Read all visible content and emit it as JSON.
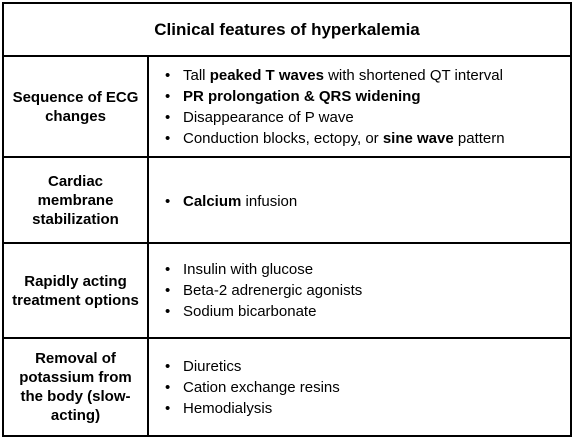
{
  "title": "Clinical features of hyperkalemia",
  "rows": [
    {
      "label": "Sequence of ECG changes",
      "items": [
        {
          "pre": "Tall ",
          "bold": "peaked T waves",
          "post": " with shortened QT interval"
        },
        {
          "pre": "",
          "bold": "PR prolongation & QRS widening",
          "post": ""
        },
        {
          "pre": "Disappearance of P wave",
          "bold": "",
          "post": ""
        },
        {
          "pre": "Conduction blocks, ectopy, or ",
          "bold": "sine wave",
          "post": " pattern"
        }
      ]
    },
    {
      "label": "Cardiac membrane stabilization",
      "items": [
        {
          "pre": "",
          "bold": "Calcium",
          "post": " infusion"
        }
      ]
    },
    {
      "label": "Rapidly acting treatment options",
      "items": [
        {
          "pre": "Insulin with glucose",
          "bold": "",
          "post": ""
        },
        {
          "pre": "Beta-2 adrenergic agonists",
          "bold": "",
          "post": ""
        },
        {
          "pre": "Sodium bicarbonate",
          "bold": "",
          "post": ""
        }
      ]
    },
    {
      "label": "Removal of potassium from the body (slow-acting)",
      "items": [
        {
          "pre": "Diuretics",
          "bold": "",
          "post": ""
        },
        {
          "pre": "Cation exchange resins",
          "bold": "",
          "post": ""
        },
        {
          "pre": "Hemodialysis",
          "bold": "",
          "post": ""
        }
      ]
    }
  ]
}
